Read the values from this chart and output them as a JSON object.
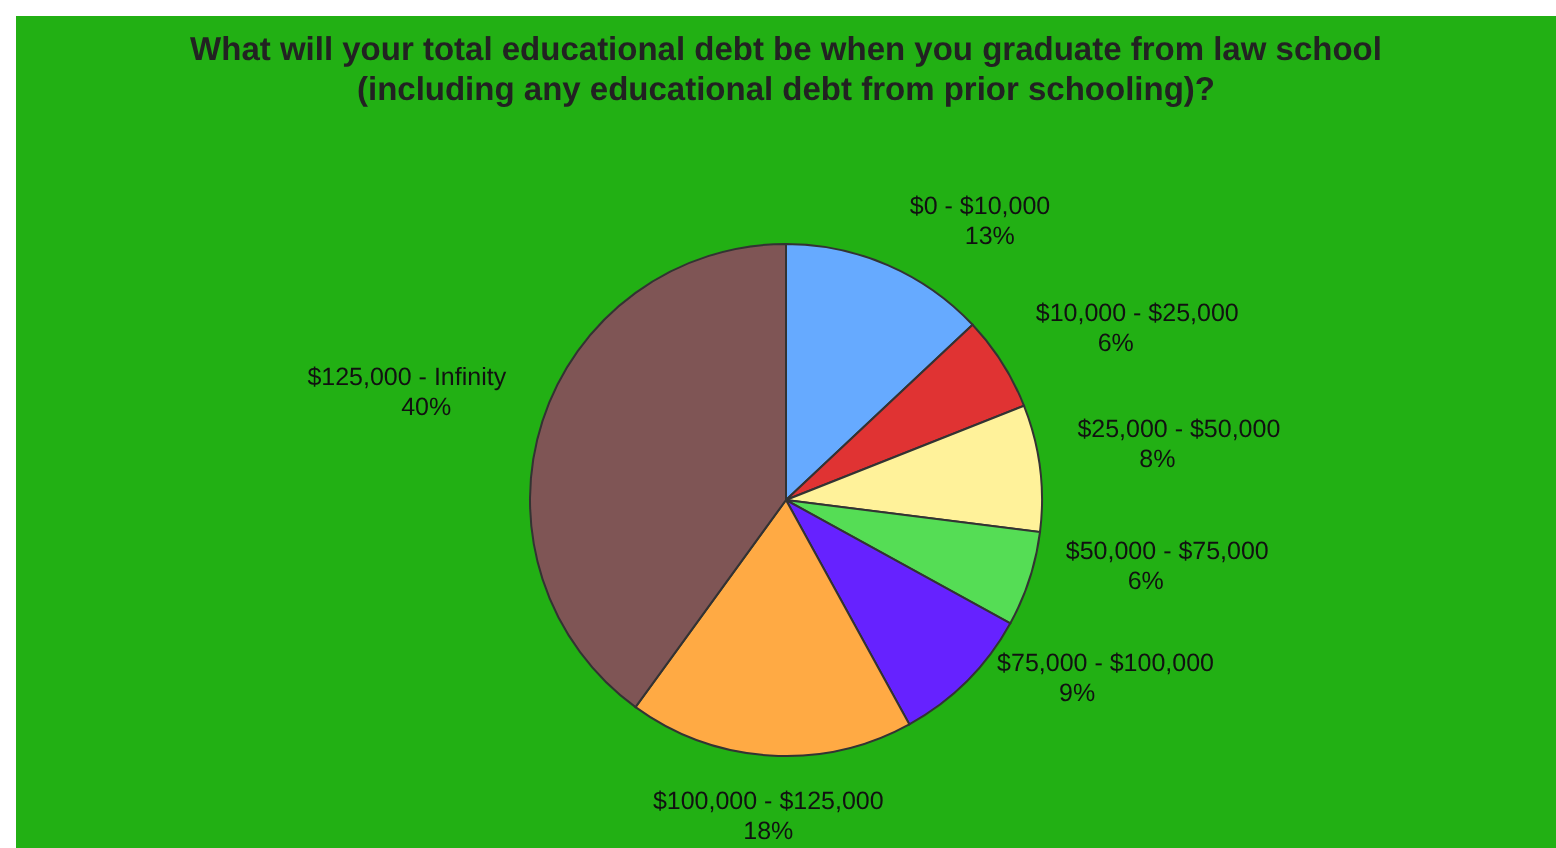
{
  "chart_data": {
    "type": "pie",
    "title": "What will your total educational debt be when you graduate from law school (including any educational debt from prior schooling)?",
    "categories": [
      "$0 - $10,000",
      "$10,000 - $25,000",
      "$25,000 - $50,000",
      "$50,000 - $75,000",
      "$75,000 - $100,000",
      "$100,000 - $125,000",
      "$125,000 - Infinity"
    ],
    "values": [
      13,
      6,
      8,
      6,
      9,
      18,
      40
    ],
    "colors": [
      "#66aaff",
      "#e03333",
      "#fff29a",
      "#55dd55",
      "#6622ff",
      "#ffaa44",
      "#7f5555"
    ],
    "value_labels": [
      "13%",
      "6%",
      "8%",
      "6%",
      "9%",
      "18%",
      "40%"
    ]
  }
}
